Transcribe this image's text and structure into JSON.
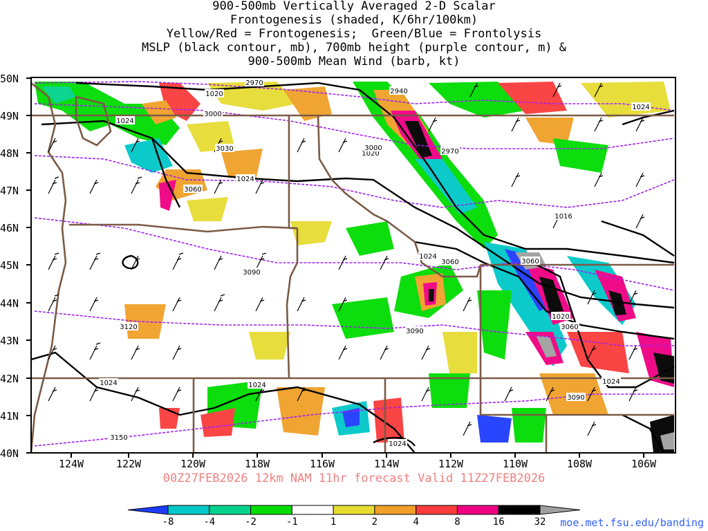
{
  "title_lines": [
    "900-500mb Vertically Averaged 2-D Scalar",
    "Frontogenesis (shaded, K/6hr/100km)",
    "Yellow/Red = Frontogenesis;  Green/Blue = Frontolysis",
    "MSLP (black contour, mb), 700mb height (purple contour, m) &",
    "900-500mb Mean Wind (barb, kt)"
  ],
  "lat_labels": [
    "50N",
    "49N",
    "48N",
    "47N",
    "46N",
    "45N",
    "44N",
    "43N",
    "42N",
    "41N",
    "40N"
  ],
  "lon_labels": [
    "124W",
    "122W",
    "120W",
    "118W",
    "116W",
    "114W",
    "112W",
    "110W",
    "108W",
    "106W"
  ],
  "valid_line": "00Z27FEB2026 12km NAM 11hr forecast Valid 11Z27FEB2026",
  "colorbar": {
    "labels": [
      "-8",
      "-4",
      "-2",
      "-1",
      "1",
      "2",
      "4",
      "8",
      "16",
      "32"
    ],
    "colors": [
      "#1e3cff",
      "#00c8c8",
      "#00d28c",
      "#00dc00",
      "#ffffff",
      "#e6dc32",
      "#f0a028",
      "#fa3c3c",
      "#f00082",
      "#000000",
      "#a0a0a0"
    ]
  },
  "credit": "moe.met.fsu.edu/banding",
  "contour_labels": {
    "mslp": [
      "1020",
      "1024",
      "1024",
      "1020",
      "1024",
      "1024",
      "1016",
      "1020",
      "1024",
      "1024",
      "1024",
      "1024"
    ],
    "height": [
      "2970",
      "2940",
      "3000",
      "3030",
      "3060",
      "3000",
      "2970",
      "3060",
      "3060",
      "3090",
      "3090",
      "3060",
      "3120",
      "3090",
      "3150"
    ]
  },
  "colors": {
    "state_border": "#7a5a46",
    "mslp_contour": "#000000",
    "height_contour": "#a020f0",
    "valid_text": "#f08080",
    "credit_text": "#3060ff"
  }
}
